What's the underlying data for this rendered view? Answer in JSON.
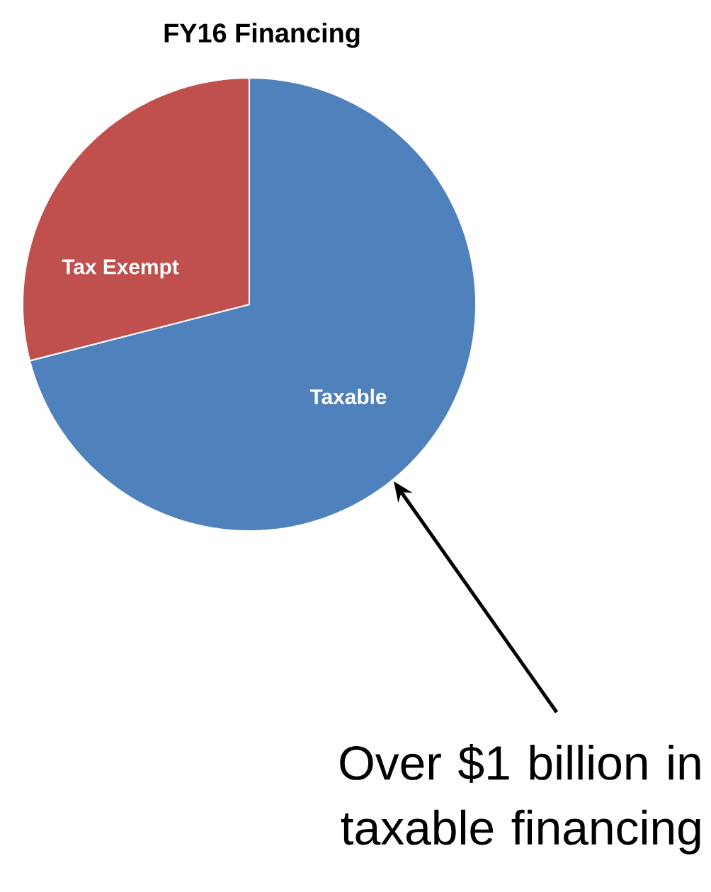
{
  "chart_data": {
    "type": "pie",
    "title": "FY16 Financing",
    "categories": [
      "Taxable",
      "Tax Exempt"
    ],
    "values": [
      71,
      29
    ],
    "colors": [
      "#4f81bd",
      "#c0504d"
    ],
    "annotations": [
      "Over $1 billion in taxable financing"
    ]
  }
}
